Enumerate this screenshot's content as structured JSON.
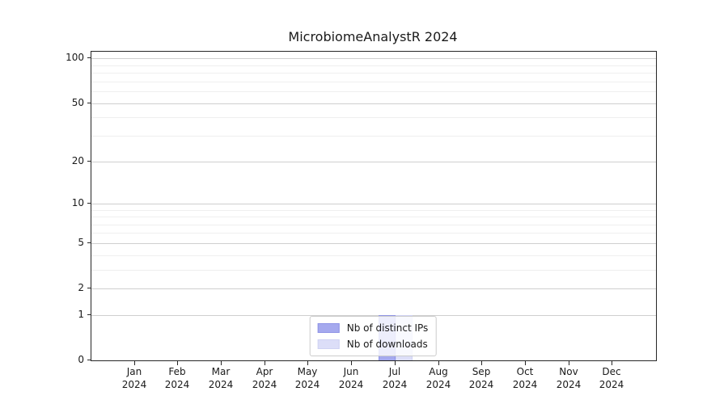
{
  "chart_data": {
    "type": "bar",
    "title": "MicrobiomeAnalystR 2024",
    "x_categories": [
      "Jan",
      "Feb",
      "Mar",
      "Apr",
      "May",
      "Jun",
      "Jul",
      "Aug",
      "Sep",
      "Oct",
      "Nov",
      "Dec"
    ],
    "x_year": "2024",
    "series": [
      {
        "name": "Nb of distinct IPs",
        "color": "#a5a9ee",
        "edge_color": "#8f94e6",
        "values": [
          0,
          0,
          0,
          0,
          0,
          0,
          1,
          0,
          0,
          0,
          0,
          0
        ]
      },
      {
        "name": "Nb of downloads",
        "color": "#dcdef8",
        "edge_color": "#cfd2f3",
        "values": [
          0,
          0,
          0,
          0,
          0,
          0,
          1,
          0,
          0,
          0,
          0,
          0
        ]
      }
    ],
    "y_scale": "log1p",
    "y_ticks": [
      0,
      1,
      2,
      5,
      10,
      20,
      50,
      100
    ],
    "y_minor_gridlines": [
      3,
      4,
      6,
      7,
      8,
      9,
      30,
      40,
      60,
      70,
      80,
      90
    ],
    "ylim": [
      0,
      111
    ],
    "xlabel": "",
    "ylabel": "",
    "grid": true,
    "legend_position": "lower center"
  },
  "colors": {
    "background": "#ffffff",
    "axis": "#262626",
    "text": "#1a1a1a",
    "major_grid": "#cfcfcf",
    "minor_grid": "#efefef",
    "legend_border": "#cccccc"
  }
}
